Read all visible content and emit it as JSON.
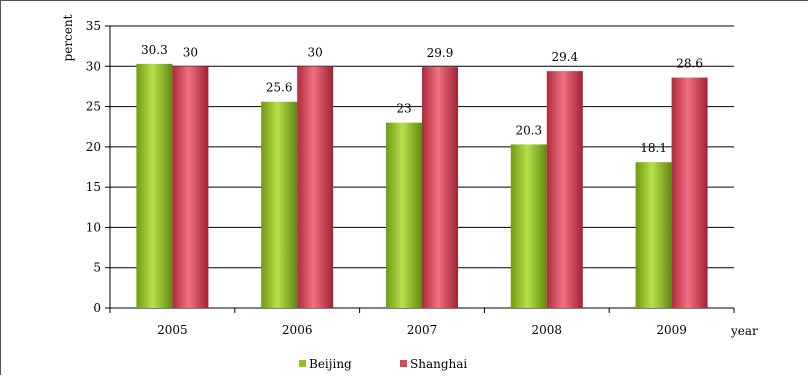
{
  "chart_data": {
    "type": "bar",
    "title": "",
    "xlabel": "year",
    "ylabel": "percent",
    "categories": [
      "2005",
      "2006",
      "2007",
      "2008",
      "2009"
    ],
    "series": [
      {
        "name": "Beijing",
        "values": [
          30.3,
          25.6,
          23,
          20.3,
          18.1
        ],
        "color": "#8dc21f"
      },
      {
        "name": "Shanghai",
        "values": [
          30,
          30,
          29.9,
          29.4,
          28.6
        ],
        "color": "#d64a5a"
      }
    ],
    "ylim": [
      0,
      35
    ],
    "yticks": [
      0,
      5,
      10,
      15,
      20,
      25,
      30,
      35
    ],
    "grid": true,
    "legend": "bottom-center"
  }
}
